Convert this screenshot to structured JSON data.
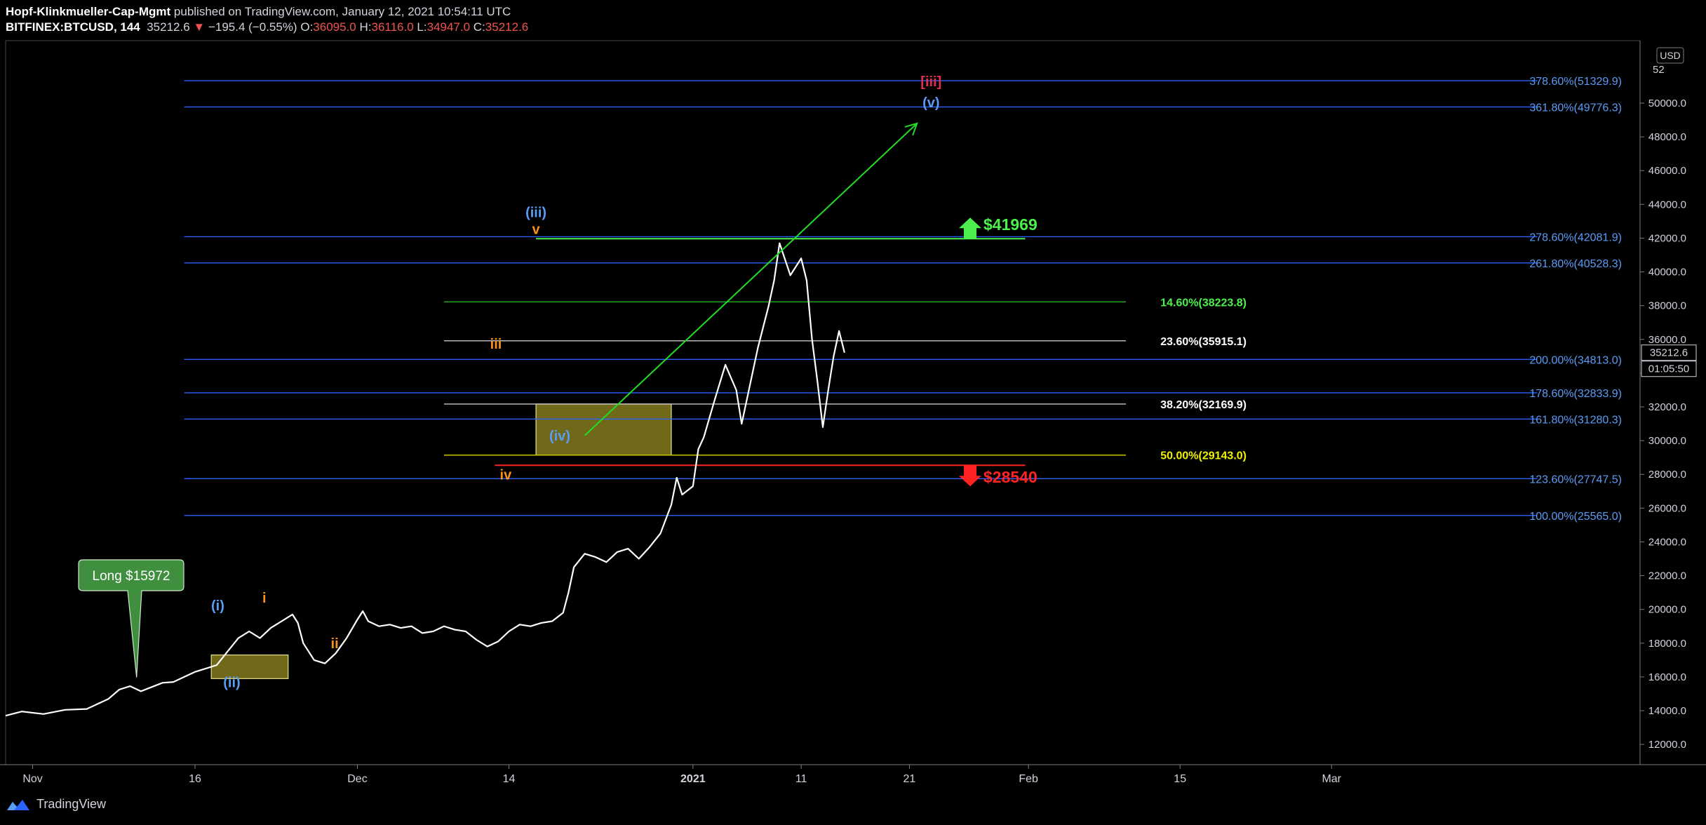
{
  "header": {
    "author": "Hopf-Klinkmueller-Cap-Mgmt",
    "published": "published on TradingView.com, January 12, 2021 10:54:11 UTC",
    "symbol": "BITFINEX:BTCUSD, 144",
    "last": "35212.6",
    "change_arrow": "▼",
    "change": "−195.4 (−0.55%)",
    "o_label": "O:",
    "o": "36095.0",
    "h_label": "H:",
    "h": "36116.0",
    "l_label": "L:",
    "l": "34947.0",
    "c_label": "C:",
    "c": "35212.6",
    "colors": {
      "value_red": "#ef5350"
    }
  },
  "footer": {
    "brand": "TradingView",
    "logo_icon": "tradingview-logo-icon"
  },
  "chart_data": {
    "type": "line",
    "title": "BITFINEX:BTCUSD, 144",
    "currency_label": "USD",
    "y_axis": {
      "ylim": [
        10800,
        53700
      ],
      "ticks": [
        12000,
        14000,
        16000,
        18000,
        20000,
        22000,
        24000,
        26000,
        28000,
        30000,
        32000,
        34000,
        36000,
        38000,
        40000,
        42000,
        44000,
        46000,
        48000,
        50000
      ],
      "tick_labels": [
        "12000.0",
        "14000.0",
        "16000.0",
        "18000.0",
        "20000.0",
        "22000.0",
        "24000.0",
        "26000.0",
        "28000.0",
        "30000.0",
        "32000.0",
        "34000.0",
        "36000.0",
        "38000.0",
        "40000.0",
        "42000.0",
        "44000.0",
        "46000.0",
        "48000.0",
        "50000.0"
      ],
      "top_partial_label": "52",
      "price_tag": {
        "value": 35212.6,
        "label": "35212.6"
      },
      "countdown": "01:05:50"
    },
    "x_axis": {
      "start_day": -1.5,
      "end_day": 149.5,
      "ticks": [
        {
          "day": 1,
          "label": "Nov",
          "bold": false
        },
        {
          "day": 16,
          "label": "16",
          "bold": false
        },
        {
          "day": 31,
          "label": "Dec",
          "bold": false
        },
        {
          "day": 45,
          "label": "14",
          "bold": false
        },
        {
          "day": 62,
          "label": "2021",
          "bold": true
        },
        {
          "day": 72,
          "label": "11",
          "bold": false
        },
        {
          "day": 82,
          "label": "21",
          "bold": false
        },
        {
          "day": 93,
          "label": "Feb",
          "bold": false
        },
        {
          "day": 107,
          "label": "15",
          "bold": false
        },
        {
          "day": 121,
          "label": "Mar",
          "bold": false
        }
      ]
    },
    "price_series": [
      [
        -1.5,
        13700
      ],
      [
        0,
        13950
      ],
      [
        2,
        13800
      ],
      [
        4,
        14050
      ],
      [
        6,
        14100
      ],
      [
        8,
        14700
      ],
      [
        9,
        15250
      ],
      [
        10,
        15450
      ],
      [
        11,
        15150
      ],
      [
        12,
        15400
      ],
      [
        13,
        15650
      ],
      [
        14,
        15700
      ],
      [
        15,
        16000
      ],
      [
        16,
        16300
      ],
      [
        17,
        16500
      ],
      [
        18,
        16700
      ],
      [
        19,
        17500
      ],
      [
        20,
        18300
      ],
      [
        21,
        18700
      ],
      [
        22,
        18300
      ],
      [
        23,
        18900
      ],
      [
        24,
        19300
      ],
      [
        25,
        19700
      ],
      [
        25.5,
        19200
      ],
      [
        26,
        18000
      ],
      [
        27,
        17000
      ],
      [
        28,
        16800
      ],
      [
        29,
        17400
      ],
      [
        30,
        18300
      ],
      [
        31,
        19400
      ],
      [
        31.5,
        19900
      ],
      [
        32,
        19300
      ],
      [
        33,
        19000
      ],
      [
        34,
        19100
      ],
      [
        35,
        18900
      ],
      [
        36,
        19000
      ],
      [
        37,
        18600
      ],
      [
        38,
        18700
      ],
      [
        39,
        19000
      ],
      [
        40,
        18800
      ],
      [
        41,
        18700
      ],
      [
        42,
        18200
      ],
      [
        43,
        17800
      ],
      [
        44,
        18100
      ],
      [
        45,
        18700
      ],
      [
        46,
        19100
      ],
      [
        47,
        19000
      ],
      [
        48,
        19200
      ],
      [
        49,
        19300
      ],
      [
        50,
        19800
      ],
      [
        50.5,
        21000
      ],
      [
        51,
        22500
      ],
      [
        52,
        23300
      ],
      [
        53,
        23100
      ],
      [
        54,
        22800
      ],
      [
        55,
        23400
      ],
      [
        56,
        23600
      ],
      [
        57,
        23000
      ],
      [
        58,
        23700
      ],
      [
        59,
        24500
      ],
      [
        60,
        26200
      ],
      [
        60.5,
        27800
      ],
      [
        61,
        26800
      ],
      [
        62,
        27300
      ],
      [
        62.5,
        29500
      ],
      [
        63,
        30200
      ],
      [
        64,
        32400
      ],
      [
        65,
        34500
      ],
      [
        66,
        33000
      ],
      [
        66.5,
        31000
      ],
      [
        67,
        32500
      ],
      [
        68,
        35500
      ],
      [
        69,
        38000
      ],
      [
        69.5,
        39500
      ],
      [
        70,
        41700
      ],
      [
        71,
        39800
      ],
      [
        72,
        40800
      ],
      [
        72.5,
        39500
      ],
      [
        73,
        36000
      ],
      [
        73.5,
        33500
      ],
      [
        74,
        30800
      ],
      [
        74.5,
        33000
      ],
      [
        75,
        35000
      ],
      [
        75.5,
        36500
      ],
      [
        76,
        35212
      ]
    ],
    "fib_levels": [
      {
        "label": "378.60%(51329.9)",
        "value": 51329.9,
        "color": "#2962ff",
        "text_color": "#5b9cf6",
        "x_start": 15,
        "x_end": 140,
        "side": "right"
      },
      {
        "label": "361.80%(49776.3)",
        "value": 49776.3,
        "color": "#2962ff",
        "text_color": "#5b9cf6",
        "x_start": 15,
        "x_end": 140,
        "side": "right"
      },
      {
        "label": "278.60%(42081.9)",
        "value": 42081.9,
        "color": "#2962ff",
        "text_color": "#5b9cf6",
        "x_start": 15,
        "x_end": 140,
        "side": "right"
      },
      {
        "label": "261.80%(40528.3)",
        "value": 40528.3,
        "color": "#2962ff",
        "text_color": "#5b9cf6",
        "x_start": 15,
        "x_end": 140,
        "side": "right"
      },
      {
        "label": "200.00%(34813.0)",
        "value": 34813.0,
        "color": "#2962ff",
        "text_color": "#5b9cf6",
        "x_start": 15,
        "x_end": 140,
        "side": "right"
      },
      {
        "label": "178.60%(32833.9)",
        "value": 32833.9,
        "color": "#2962ff",
        "text_color": "#5b9cf6",
        "x_start": 15,
        "x_end": 140,
        "side": "right"
      },
      {
        "label": "161.80%(31280.3)",
        "value": 31280.3,
        "color": "#2962ff",
        "text_color": "#5b9cf6",
        "x_start": 15,
        "x_end": 140,
        "side": "right"
      },
      {
        "label": "123.60%(27747.5)",
        "value": 27747.5,
        "color": "#2962ff",
        "text_color": "#5b9cf6",
        "x_start": 15,
        "x_end": 140,
        "side": "right"
      },
      {
        "label": "100.00%(25565.0)",
        "value": 25565.0,
        "color": "#2962ff",
        "text_color": "#5b9cf6",
        "x_start": 15,
        "x_end": 140,
        "side": "right"
      },
      {
        "label": "14.60%(38223.8)",
        "value": 38223.8,
        "color": "#22ab22",
        "text_color": "#4cf04c",
        "x_start": 39,
        "x_end": 102,
        "side": "mid"
      },
      {
        "label": "23.60%(35915.1)",
        "value": 35915.1,
        "color": "#c8c8c8",
        "text_color": "#ffffff",
        "x_start": 39,
        "x_end": 102,
        "side": "mid"
      },
      {
        "label": "38.20%(32169.9)",
        "value": 32169.9,
        "color": "#c8c8c8",
        "text_color": "#ffffff",
        "x_start": 39,
        "x_end": 102,
        "side": "mid"
      },
      {
        "label": "50.00%(29143.0)",
        "value": 29143.0,
        "color": "#c8c800",
        "text_color": "#f0f000",
        "x_start": 39,
        "x_end": 102,
        "side": "mid"
      }
    ],
    "zones": [
      {
        "x0": 47.5,
        "x1": 60,
        "y0": 29143,
        "y1": 32169.9
      },
      {
        "x0": 17.5,
        "x1": 24.6,
        "y0": 15900,
        "y1": 17300
      }
    ],
    "target_line": {
      "value": 41969,
      "label": "$41969",
      "color": "#4cf04c",
      "x0": 47.5,
      "x1": 92.7
    },
    "stop_line": {
      "value": 28540,
      "label": "$28540",
      "color": "#ff2222",
      "x0": 43.7,
      "x1": 92.7
    },
    "projection_arrow": {
      "from": [
        52,
        30300
      ],
      "to": [
        82.7,
        48800
      ],
      "color": "#22dd22"
    },
    "wave_labels": [
      {
        "text": "[iii]",
        "day": 84,
        "value": 51000,
        "color": "#e0304e"
      },
      {
        "text": "(v)",
        "day": 84,
        "value": 49750,
        "color": "#5b9cf6"
      },
      {
        "text": "(iii)",
        "day": 47.5,
        "value": 43250,
        "color": "#5b9cf6"
      },
      {
        "text": "v",
        "day": 47.5,
        "value": 42250,
        "color": "#f7931a"
      },
      {
        "text": "iii",
        "day": 43.8,
        "value": 35450,
        "color": "#f7931a"
      },
      {
        "text": "(iv)",
        "day": 49.7,
        "value": 30000,
        "color": "#5b9cf6"
      },
      {
        "text": "iv",
        "day": 44.7,
        "value": 27700,
        "color": "#f7931a"
      },
      {
        "text": "(i)",
        "day": 18.1,
        "value": 19950,
        "color": "#5b9cf6"
      },
      {
        "text": "i",
        "day": 22.4,
        "value": 20400,
        "color": "#f7931a"
      },
      {
        "text": "ii",
        "day": 28.9,
        "value": 17700,
        "color": "#f7931a"
      },
      {
        "text": "(ii)",
        "day": 19.4,
        "value": 15400,
        "color": "#5b9cf6"
      }
    ],
    "callout": {
      "text": "Long $15972",
      "day": 10.6,
      "value": 15972,
      "color": "#3f8f3f"
    }
  }
}
